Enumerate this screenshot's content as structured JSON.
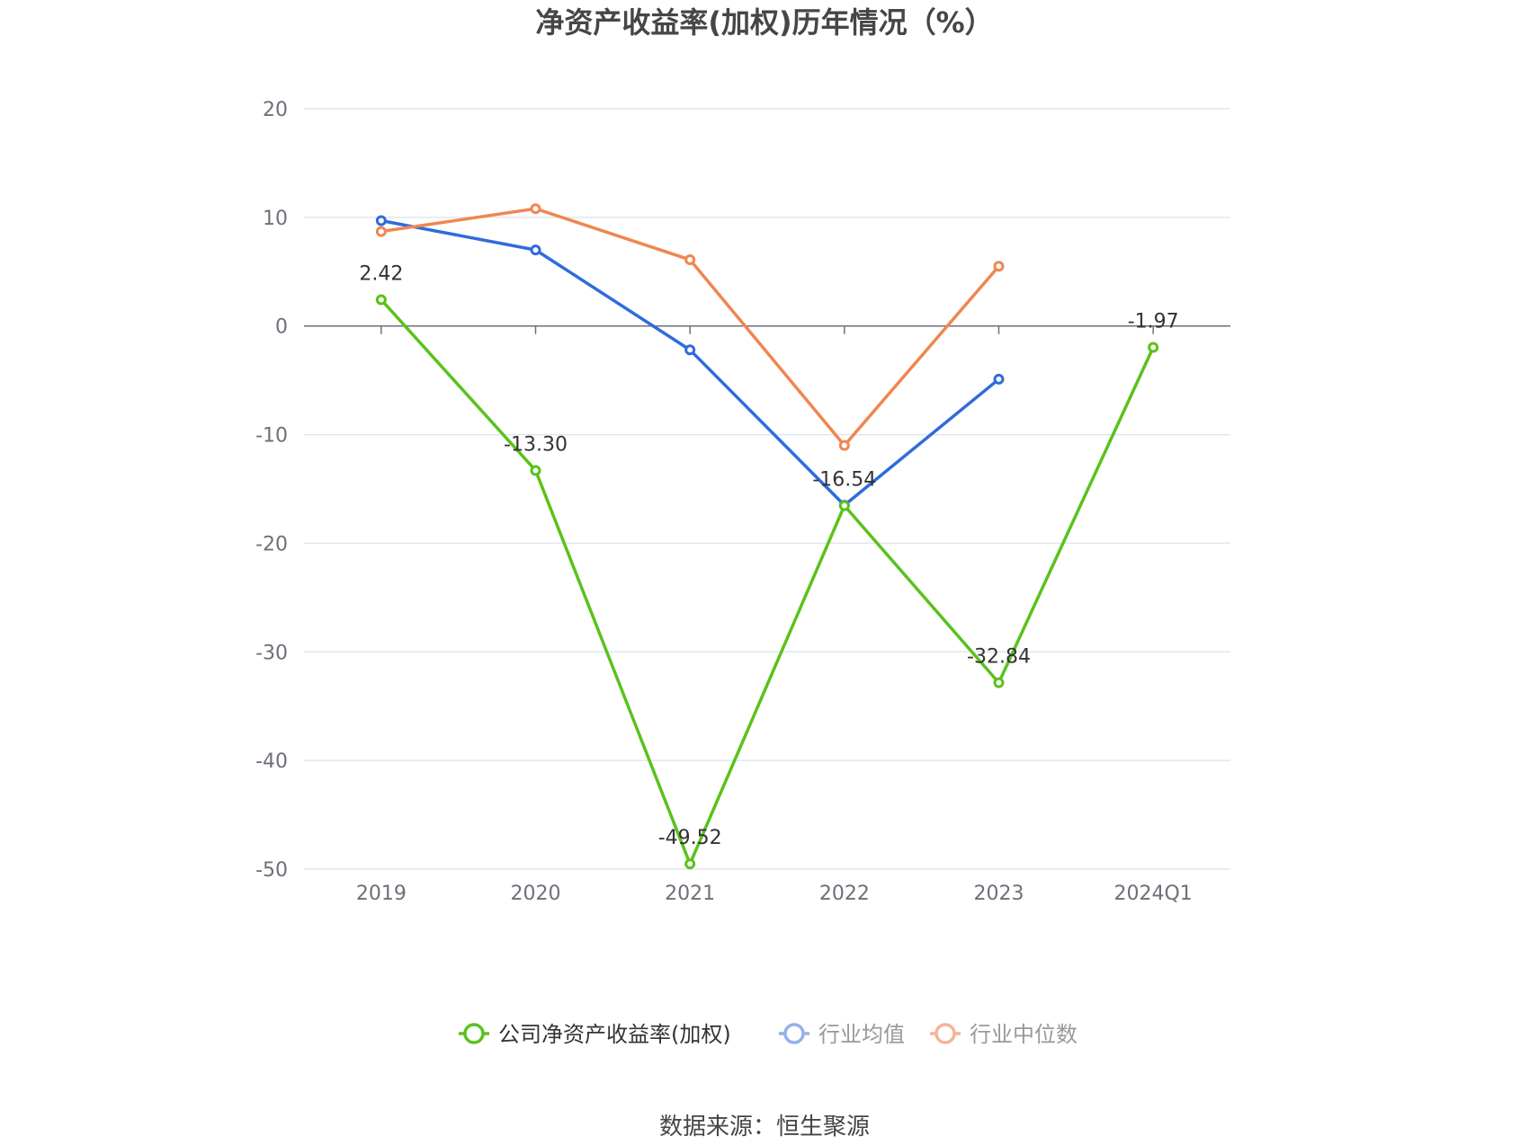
{
  "chart_data": {
    "type": "line",
    "title": "净资产收益率(加权)历年情况（%）",
    "categories": [
      "2019",
      "2020",
      "2021",
      "2022",
      "2023",
      "2024Q1"
    ],
    "ylim": [
      -50,
      20
    ],
    "yticks": [
      20,
      10,
      0,
      -10,
      -20,
      -30,
      -40,
      -50
    ],
    "grid": true,
    "legend_position": "bottom",
    "series": [
      {
        "name": "公司净资产收益率(加权)",
        "color": "#5ac21c",
        "values": [
          2.42,
          -13.3,
          -49.52,
          -16.54,
          -32.84,
          -1.97
        ],
        "labels": [
          "2.42",
          "-13.30",
          "-49.52",
          "-16.54",
          "-32.84",
          "-1.97"
        ]
      },
      {
        "name": "行业均值",
        "color": "#2f6bdc",
        "values": [
          9.7,
          7.0,
          -2.2,
          -16.5,
          -4.9,
          null
        ]
      },
      {
        "name": "行业中位数",
        "color": "#f08651",
        "values": [
          8.7,
          10.8,
          6.1,
          -11.0,
          5.5,
          null
        ]
      }
    ]
  },
  "source_text": "数据来源：恒生聚源"
}
